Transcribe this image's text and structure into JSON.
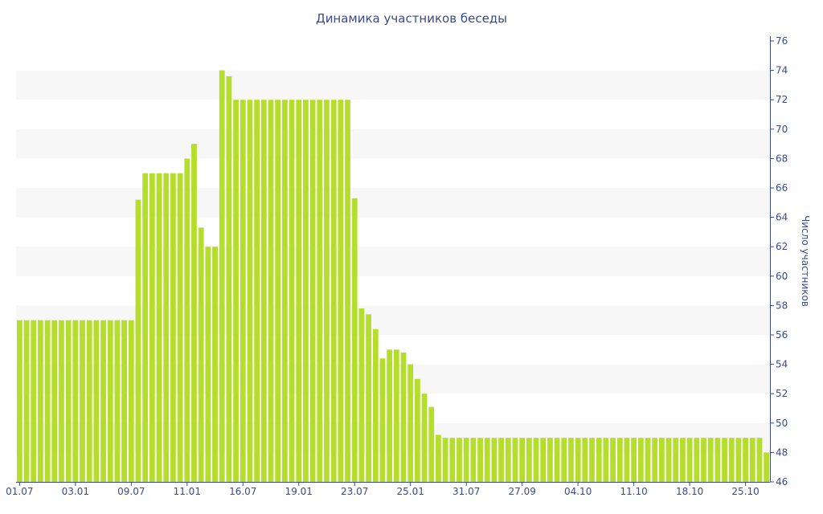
{
  "chart_data": {
    "type": "bar",
    "title": "Динамика участников беседы",
    "xlabel": "",
    "ylabel": "Число участников",
    "y_axis_side": "right",
    "ylim": [
      46,
      76
    ],
    "y_ticks": [
      46,
      48,
      50,
      52,
      54,
      56,
      58,
      60,
      62,
      64,
      66,
      68,
      70,
      72,
      74,
      76
    ],
    "x_tick_labels": [
      {
        "index": 0,
        "label": "01.07"
      },
      {
        "index": 8,
        "label": "03.01"
      },
      {
        "index": 16,
        "label": "09.07"
      },
      {
        "index": 24,
        "label": "11.01"
      },
      {
        "index": 32,
        "label": "16.07"
      },
      {
        "index": 40,
        "label": "19.01"
      },
      {
        "index": 48,
        "label": "23.07"
      },
      {
        "index": 56,
        "label": "25.01"
      },
      {
        "index": 64,
        "label": "31.07"
      },
      {
        "index": 72,
        "label": "27.09"
      },
      {
        "index": 80,
        "label": "04.10"
      },
      {
        "index": 88,
        "label": "11.10"
      },
      {
        "index": 96,
        "label": "18.10"
      },
      {
        "index": 104,
        "label": "25.10"
      }
    ],
    "values": [
      57,
      57,
      57,
      57,
      57,
      57,
      57,
      57,
      57,
      57,
      57,
      57,
      57,
      57,
      57,
      57,
      57,
      65.2,
      67,
      67,
      67,
      67,
      67,
      67,
      68,
      69,
      63.3,
      62,
      62,
      74,
      73.6,
      72,
      72,
      72,
      72,
      72,
      72,
      72,
      72,
      72,
      72,
      72,
      72,
      72,
      72,
      72,
      72,
      72,
      65.3,
      57.8,
      57.4,
      56.4,
      54.4,
      55,
      55,
      54.8,
      54,
      53,
      52,
      51.1,
      49.2,
      49,
      49,
      49,
      49,
      49,
      49,
      49,
      49,
      49,
      49,
      49,
      49,
      49,
      49,
      49,
      49,
      49,
      49,
      49,
      49,
      49,
      49,
      49,
      49,
      49,
      49,
      49,
      49,
      49,
      49,
      49,
      49,
      49,
      49,
      49,
      49,
      49,
      49,
      49,
      49,
      49,
      49,
      49,
      49,
      49,
      49,
      48
    ],
    "grid": "horizontal alternating bands",
    "colors": {
      "bar": "#b5dd2c",
      "band": "#f7f7f7",
      "text": "#3a4a8c",
      "axis": "#3a4a8c"
    }
  }
}
